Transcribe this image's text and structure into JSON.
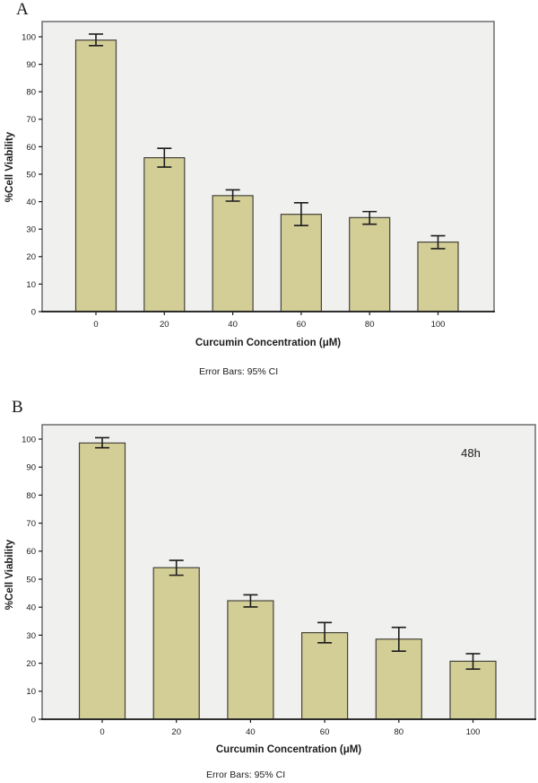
{
  "figure": {
    "description": "Two stacked SPSS-style bar charts of cell viability vs curcumin concentration",
    "caption_text": "Error Bars: 95% CI"
  },
  "colors": {
    "bar_fill": "#d3cd96",
    "bar_stroke": "#45443a",
    "plot_bg": "#f0f0ef",
    "frame": "#767676",
    "axis": "#1c1c1c",
    "text": "#1c1c1c",
    "annotation": "#3d3d3d",
    "page_bg": "#ffffff"
  },
  "panels": [
    {
      "label": "A",
      "annotation": "",
      "chart_data": {
        "type": "bar",
        "categories": [
          "0",
          "20",
          "40",
          "60",
          "80",
          "100"
        ],
        "values": [
          98.8,
          56.0,
          42.2,
          35.4,
          34.2,
          25.3
        ],
        "ci_upper": [
          101.0,
          59.4,
          44.3,
          39.6,
          36.4,
          27.6
        ],
        "ci_lower": [
          96.8,
          52.6,
          40.2,
          31.3,
          31.8,
          22.9
        ],
        "title": "",
        "xlabel": "Curcumin Concentration (μM)",
        "ylabel": "%Cell Viability",
        "caption": "Error Bars: 95% CI",
        "ylim": [
          0,
          105
        ],
        "yticks": [
          0,
          10,
          20,
          30,
          40,
          50,
          60,
          70,
          80,
          90,
          100
        ],
        "grid": false,
        "legend": "none"
      }
    },
    {
      "label": "B",
      "annotation": "48h",
      "chart_data": {
        "type": "bar",
        "categories": [
          "0",
          "20",
          "40",
          "60",
          "80",
          "100"
        ],
        "values": [
          98.6,
          54.1,
          42.3,
          30.9,
          28.6,
          20.7
        ],
        "ci_upper": [
          100.5,
          56.7,
          44.4,
          34.5,
          32.8,
          23.4
        ],
        "ci_lower": [
          96.9,
          51.4,
          40.1,
          27.3,
          24.3,
          17.9
        ],
        "title": "",
        "xlabel": "Curcumin Concentration (μM)",
        "ylabel": "%Cell Viability",
        "caption": "Error Bars: 95% CI",
        "ylim": [
          0,
          105
        ],
        "yticks": [
          0,
          10,
          20,
          30,
          40,
          50,
          60,
          70,
          80,
          90,
          100
        ],
        "grid": false,
        "legend": "none"
      }
    }
  ]
}
